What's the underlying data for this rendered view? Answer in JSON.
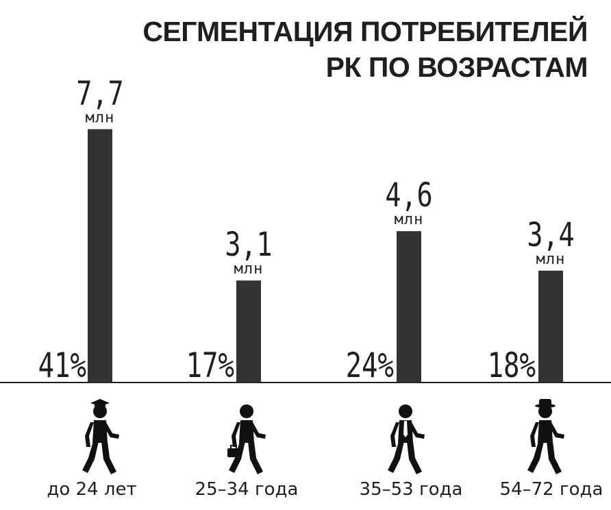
{
  "title_line1": "СЕГМЕНТАЦИЯ ПОТРЕБИТЕЛЕЙ",
  "title_line2": "РК ПО ВОЗРАСТАМ",
  "colors": {
    "bar": "#333333",
    "text": "#1f1f1f",
    "baseline": "#1a1a1a",
    "icon": "#111111"
  },
  "chart_data": {
    "type": "bar",
    "title": "СЕГМЕНТАЦИЯ ПОТРЕБИТЕЛЕЙ РК ПО ВОЗРАСТАМ",
    "categories": [
      "до 24 лет",
      "25–34 года",
      "35–53 года",
      "54–72 года"
    ],
    "values": [
      7.7,
      3.1,
      4.6,
      3.4
    ],
    "value_labels": [
      "7,7",
      "3,1",
      "4,6",
      "3,4"
    ],
    "unit": "млн",
    "percent_labels": [
      "41%",
      "17%",
      "24%",
      "18%"
    ],
    "icons": [
      "graduate-walking-icon",
      "businessman-with-briefcase-icon",
      "man-in-tie-icon",
      "elderly-man-with-hat-icon"
    ],
    "ylim": [
      0,
      8.5
    ],
    "grid": false,
    "legend": "none"
  }
}
